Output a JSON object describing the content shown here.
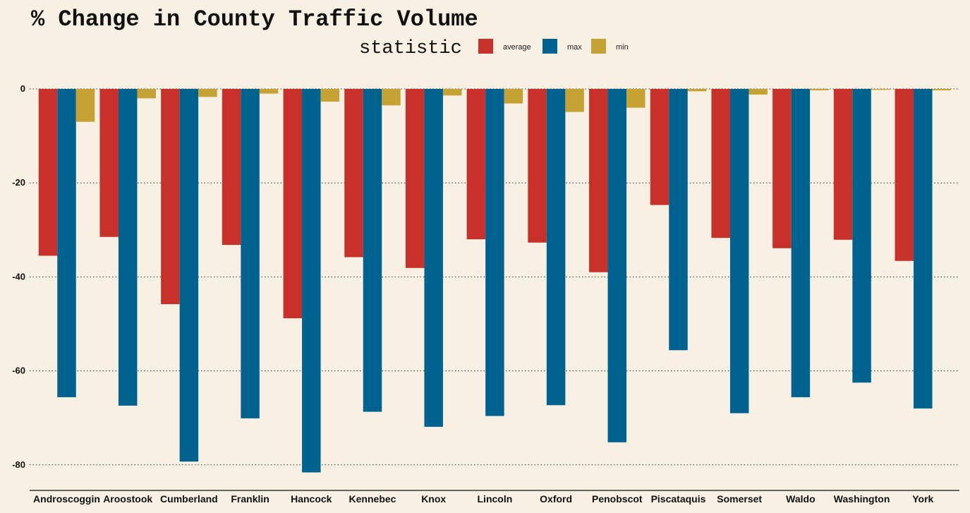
{
  "chart_data": {
    "type": "bar",
    "title": "% Change in County Traffic Volume",
    "legend_title": "statistic",
    "legend_position": "top",
    "grid": "horizontal dotted",
    "categories": [
      "Androscoggin",
      "Aroostook",
      "Cumberland",
      "Franklin",
      "Hancock",
      "Kennebec",
      "Knox",
      "Lincoln",
      "Oxford",
      "Penobscot",
      "Piscataquis",
      "Somerset",
      "Waldo",
      "Washington",
      "York"
    ],
    "series": [
      {
        "name": "average",
        "color": "#c8302a",
        "values": [
          -35.5,
          -31.5,
          -45.8,
          -33.2,
          -48.8,
          -35.8,
          -38.1,
          -32.0,
          -32.7,
          -39.0,
          -24.7,
          -31.7,
          -33.9,
          -32.1,
          -36.6
        ]
      },
      {
        "name": "max",
        "color": "#00628f",
        "values": [
          -65.6,
          -67.4,
          -79.3,
          -70.1,
          -81.6,
          -68.7,
          -71.9,
          -69.6,
          -67.3,
          -75.2,
          -55.6,
          -69.0,
          -65.6,
          -62.5,
          -68.0
        ]
      },
      {
        "name": "min",
        "color": "#c5a233",
        "values": [
          -7.0,
          -2.0,
          -1.7,
          -1.0,
          -2.7,
          -3.5,
          -1.4,
          -3.1,
          -4.9,
          -4.0,
          -0.5,
          -1.2,
          -0.3,
          -0.2,
          -0.3
        ]
      }
    ],
    "yticks": [
      0,
      -20,
      -40,
      -60,
      -80
    ],
    "ylim": [
      -85,
      0
    ]
  }
}
